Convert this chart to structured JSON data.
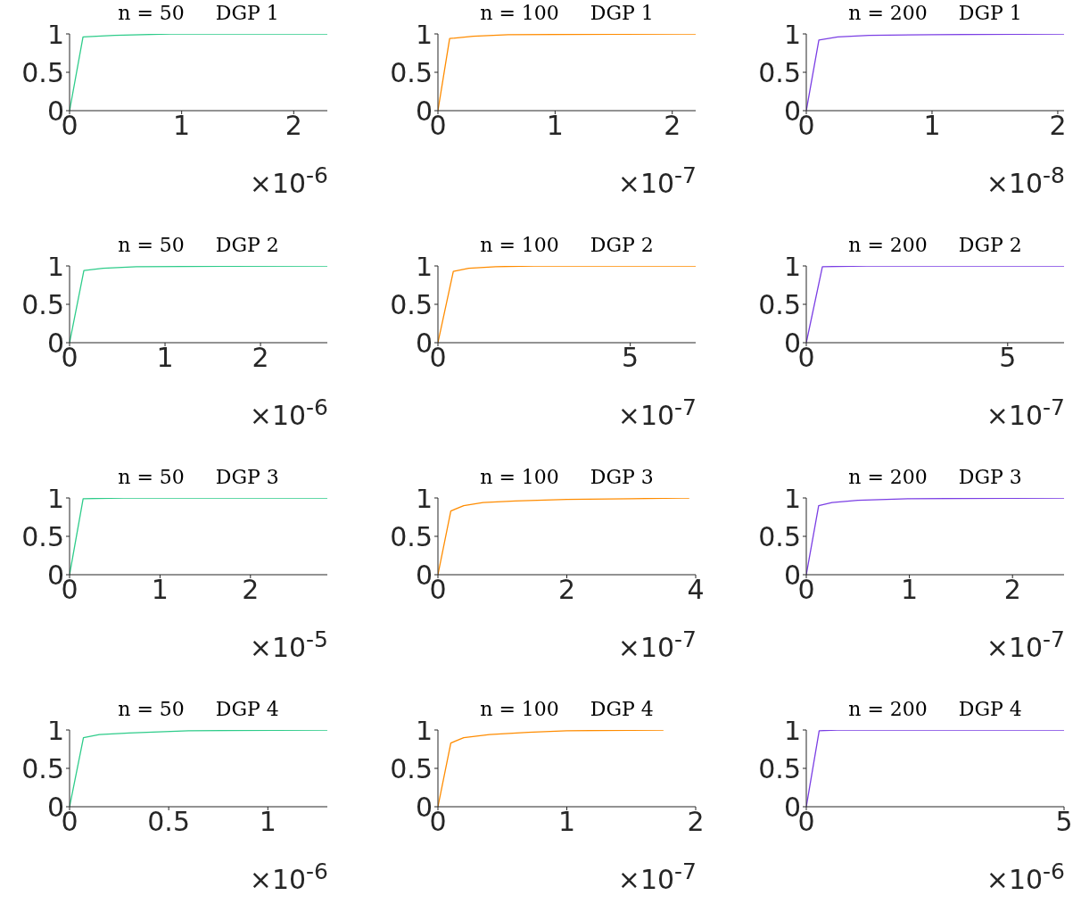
{
  "chart_data": [
    {
      "type": "line",
      "title": "n = 50     DGP 1",
      "xlabel": "×10$^{-6}$",
      "xlim": [
        0,
        2.3
      ],
      "xticks": [
        0,
        1,
        2
      ],
      "ylim": [
        0,
        1
      ],
      "yticks": [
        0,
        0.5,
        1
      ],
      "grid": false,
      "marker": "none",
      "series": [
        {
          "color": "#2ecc8a",
          "x": [
            0,
            0.12,
            0.4,
            0.9,
            2.3
          ],
          "values": [
            0,
            0.96,
            0.98,
            1,
            1
          ]
        }
      ]
    },
    {
      "type": "line",
      "title": "n = 100     DGP 1",
      "xlabel": "×10$^{-7}$",
      "xlim": [
        0,
        2.2
      ],
      "xticks": [
        0,
        1,
        2
      ],
      "ylim": [
        0,
        1
      ],
      "yticks": [
        0,
        0.5,
        1
      ],
      "grid": false,
      "marker": "none",
      "series": [
        {
          "color": "#ff8c00",
          "x": [
            0,
            0.1,
            0.3,
            0.6,
            2.2
          ],
          "values": [
            0,
            0.94,
            0.97,
            0.99,
            1
          ]
        }
      ]
    },
    {
      "type": "line",
      "title": "n = 200     DGP 1",
      "xlabel": "×10$^{-8}$",
      "xlim": [
        0,
        2.05
      ],
      "xticks": [
        0,
        1,
        2
      ],
      "ylim": [
        0,
        1
      ],
      "yticks": [
        0,
        0.5,
        1
      ],
      "grid": false,
      "marker": "none",
      "series": [
        {
          "color": "#7b3fe4",
          "x": [
            0,
            0.1,
            0.25,
            0.5,
            1,
            2.05
          ],
          "values": [
            0,
            0.92,
            0.96,
            0.98,
            0.99,
            1
          ]
        }
      ]
    },
    {
      "type": "line",
      "title": "n = 50     DGP 2",
      "xlabel": "×10$^{-6}$",
      "xlim": [
        0,
        2.7
      ],
      "xticks": [
        0,
        1,
        2
      ],
      "ylim": [
        0,
        1
      ],
      "yticks": [
        0,
        0.5,
        1
      ],
      "grid": false,
      "marker": "none",
      "series": [
        {
          "color": "#2ecc8a",
          "x": [
            0,
            0.15,
            0.35,
            0.7,
            2.7
          ],
          "values": [
            0,
            0.94,
            0.97,
            0.99,
            1
          ]
        }
      ]
    },
    {
      "type": "line",
      "title": "n = 100     DGP 2",
      "xlabel": "×10$^{-7}$",
      "xlim": [
        0,
        6.7
      ],
      "xticks": [
        0,
        5
      ],
      "ylim": [
        0,
        1
      ],
      "yticks": [
        0,
        0.5,
        1
      ],
      "grid": false,
      "marker": "none",
      "series": [
        {
          "color": "#ff8c00",
          "x": [
            0,
            0.4,
            0.8,
            1.5,
            2.5,
            6.7
          ],
          "values": [
            0,
            0.93,
            0.97,
            0.99,
            1,
            1
          ]
        }
      ]
    },
    {
      "type": "line",
      "title": "n = 200     DGP 2",
      "xlabel": "×10$^{-7}$",
      "xlim": [
        0,
        6.4
      ],
      "xticks": [
        0,
        5
      ],
      "ylim": [
        0,
        1
      ],
      "yticks": [
        0,
        0.5,
        1
      ],
      "grid": false,
      "marker": "none",
      "series": [
        {
          "color": "#7b3fe4",
          "x": [
            0,
            0.4,
            1.5,
            6.4
          ],
          "values": [
            0,
            0.99,
            1,
            1
          ]
        }
      ]
    },
    {
      "type": "line",
      "title": "n = 50     DGP 3",
      "xlabel": "×10$^{-5}$",
      "xlim": [
        0,
        2.85
      ],
      "xticks": [
        0,
        1,
        2
      ],
      "ylim": [
        0,
        1
      ],
      "yticks": [
        0,
        0.5,
        1
      ],
      "grid": false,
      "marker": "none",
      "series": [
        {
          "color": "#2ecc8a",
          "x": [
            0,
            0.15,
            0.6,
            2.85
          ],
          "values": [
            0,
            0.99,
            1,
            1
          ]
        }
      ]
    },
    {
      "type": "line",
      "title": "n = 100     DGP 3",
      "xlabel": "×10$^{-7}$",
      "xlim": [
        0,
        4
      ],
      "xticks": [
        0,
        2,
        4
      ],
      "ylim": [
        0,
        1
      ],
      "yticks": [
        0,
        0.5,
        1
      ],
      "grid": false,
      "marker": "none",
      "series": [
        {
          "color": "#ff8c00",
          "x": [
            0,
            0.2,
            0.4,
            0.7,
            1.2,
            2,
            3,
            3.9
          ],
          "values": [
            0,
            0.83,
            0.9,
            0.94,
            0.96,
            0.98,
            0.99,
            1
          ]
        }
      ]
    },
    {
      "type": "line",
      "title": "n = 200     DGP 3",
      "xlabel": "×10$^{-7}$",
      "xlim": [
        0,
        2.5
      ],
      "xticks": [
        0,
        1,
        2
      ],
      "ylim": [
        0,
        1
      ],
      "yticks": [
        0,
        0.5,
        1
      ],
      "grid": false,
      "marker": "none",
      "series": [
        {
          "color": "#7b3fe4",
          "x": [
            0,
            0.12,
            0.25,
            0.5,
            1,
            2.5
          ],
          "values": [
            0,
            0.9,
            0.94,
            0.97,
            0.99,
            1
          ]
        }
      ]
    },
    {
      "type": "line",
      "title": "n = 50     DGP 4",
      "xlabel": "×10$^{-6}$",
      "xlim": [
        0,
        1.3
      ],
      "xticks": [
        0,
        0.5,
        1
      ],
      "ylim": [
        0,
        1
      ],
      "yticks": [
        0,
        0.5,
        1
      ],
      "grid": false,
      "marker": "none",
      "series": [
        {
          "color": "#2ecc8a",
          "x": [
            0,
            0.07,
            0.15,
            0.3,
            0.6,
            1.3
          ],
          "values": [
            0,
            0.9,
            0.94,
            0.96,
            0.99,
            1
          ]
        }
      ]
    },
    {
      "type": "line",
      "title": "n = 100     DGP 4",
      "xlabel": "×10$^{-7}$",
      "xlim": [
        0,
        2
      ],
      "xticks": [
        0,
        1,
        2
      ],
      "ylim": [
        0,
        1
      ],
      "yticks": [
        0,
        0.5,
        1
      ],
      "grid": false,
      "marker": "none",
      "series": [
        {
          "color": "#ff8c00",
          "x": [
            0,
            0.1,
            0.2,
            0.4,
            0.7,
            1,
            1.75
          ],
          "values": [
            0,
            0.83,
            0.9,
            0.94,
            0.97,
            0.99,
            1
          ]
        }
      ]
    },
    {
      "type": "line",
      "title": "n = 200     DGP 4",
      "xlabel": "×10$^{-6}$",
      "xlim": [
        0,
        5
      ],
      "xticks": [
        0,
        5
      ],
      "ylim": [
        0,
        1
      ],
      "yticks": [
        0,
        0.5,
        1
      ],
      "grid": false,
      "marker": "none",
      "series": [
        {
          "color": "#7b3fe4",
          "x": [
            0,
            0.25,
            0.6,
            5
          ],
          "values": [
            0,
            0.99,
            1,
            1
          ]
        }
      ]
    }
  ]
}
